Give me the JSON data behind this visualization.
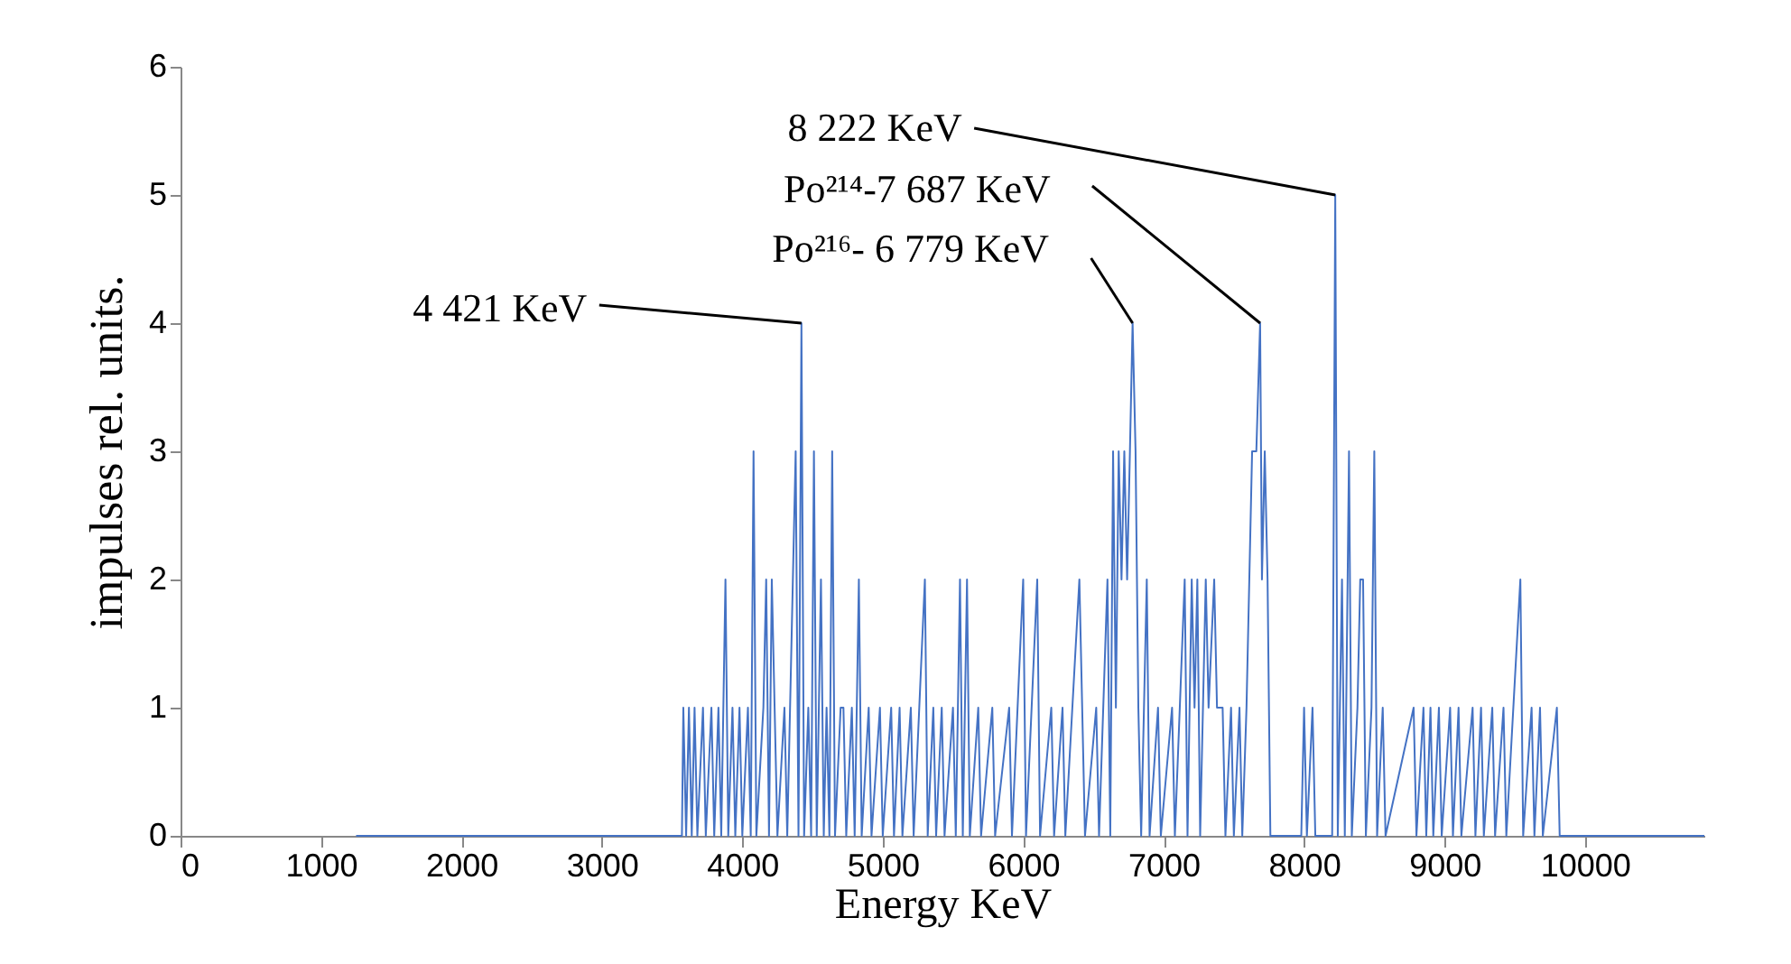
{
  "chart_data": {
    "type": "line",
    "xlabel": "Energy KeV",
    "ylabel": "impulses rel. units.",
    "xlim": [
      0,
      10850
    ],
    "xticks": [
      0,
      1000,
      2000,
      3000,
      4000,
      5000,
      6000,
      7000,
      8000,
      9000,
      10000
    ],
    "ylim": [
      0,
      6
    ],
    "yticks": [
      0,
      1,
      2,
      3,
      4,
      5,
      6
    ],
    "grid": false,
    "marker": "none",
    "line_style": "solid",
    "annotations": [
      {
        "text": "4 421 KeV",
        "x": 4421,
        "y": 4
      },
      {
        "text": "Po²¹⁶- 6 779 KeV",
        "x": 6779,
        "y": 4
      },
      {
        "text": "Po²¹⁴-7 687 KeV",
        "x": 7687,
        "y": 4
      },
      {
        "text": "8 222 KeV",
        "x": 8222,
        "y": 5
      }
    ],
    "series": [
      {
        "color": "#4472c4",
        "x": [
          1250,
          3570,
          3580,
          3600,
          3620,
          3640,
          3660,
          3680,
          3720,
          3740,
          3780,
          3800,
          3830,
          3850,
          3880,
          3900,
          3930,
          3950,
          3980,
          4000,
          4040,
          4060,
          4080,
          4100,
          4150,
          4170,
          4190,
          4210,
          4230,
          4250,
          4300,
          4320,
          4380,
          4400,
          4421,
          4440,
          4470,
          4490,
          4510,
          4530,
          4560,
          4580,
          4600,
          4620,
          4640,
          4660,
          4700,
          4720,
          4740,
          4780,
          4800,
          4830,
          4850,
          4900,
          4920,
          4980,
          5000,
          5060,
          5080,
          5120,
          5140,
          5200,
          5220,
          5300,
          5320,
          5360,
          5380,
          5420,
          5440,
          5500,
          5520,
          5550,
          5570,
          5600,
          5620,
          5680,
          5700,
          5780,
          5800,
          5900,
          5920,
          6000,
          6020,
          6100,
          6120,
          6200,
          6220,
          6280,
          6300,
          6400,
          6420,
          6440,
          6520,
          6540,
          6600,
          6620,
          6640,
          6660,
          6680,
          6700,
          6720,
          6740,
          6760,
          6779,
          6800,
          6820,
          6840,
          6880,
          6900,
          6960,
          6980,
          7060,
          7080,
          7150,
          7170,
          7200,
          7220,
          7240,
          7260,
          7300,
          7320,
          7360,
          7380,
          7420,
          7440,
          7480,
          7500,
          7540,
          7560,
          7590,
          7610,
          7630,
          7660,
          7687,
          7700,
          7720,
          7740,
          7760,
          7980,
          8000,
          8020,
          8060,
          8080,
          8200,
          8222,
          8240,
          8270,
          8290,
          8320,
          8340,
          8380,
          8400,
          8420,
          8440,
          8480,
          8500,
          8520,
          8560,
          8580,
          8780,
          8800,
          8850,
          8870,
          8900,
          8920,
          8960,
          8980,
          9040,
          9060,
          9100,
          9120,
          9200,
          9220,
          9260,
          9280,
          9340,
          9360,
          9420,
          9440,
          9540,
          9560,
          9620,
          9640,
          9680,
          9700,
          9800,
          9820,
          10850
        ],
        "values": [
          0,
          0,
          1,
          0,
          1,
          0,
          1,
          0,
          1,
          0,
          1,
          0,
          1,
          0,
          2,
          0,
          1,
          0,
          1,
          0,
          1,
          0,
          3,
          0,
          1,
          2,
          0,
          2,
          1,
          0,
          1,
          0,
          3,
          0,
          4,
          0,
          1,
          0,
          3,
          0,
          2,
          0,
          1,
          0,
          3,
          0,
          1,
          1,
          0,
          1,
          0,
          2,
          0,
          1,
          0,
          1,
          0,
          1,
          0,
          1,
          0,
          1,
          0,
          2,
          0,
          1,
          0,
          1,
          0,
          1,
          0,
          2,
          0,
          2,
          0,
          1,
          0,
          1,
          0,
          1,
          0,
          2,
          0,
          2,
          0,
          1,
          0,
          1,
          0,
          2,
          1,
          0,
          1,
          0,
          2,
          0,
          3,
          1,
          3,
          2,
          3,
          2,
          3,
          4,
          3,
          1,
          0,
          2,
          0,
          1,
          0,
          1,
          0,
          2,
          0,
          2,
          1,
          2,
          0,
          2,
          1,
          2,
          1,
          1,
          0,
          1,
          0,
          1,
          0,
          1,
          2,
          3,
          3,
          4,
          2,
          3,
          2,
          0,
          0,
          1,
          0,
          1,
          0,
          0,
          5,
          0,
          2,
          0,
          3,
          0,
          1,
          2,
          2,
          0,
          1,
          3,
          0,
          1,
          0,
          1,
          0,
          1,
          0,
          1,
          0,
          1,
          0,
          1,
          0,
          1,
          0,
          1,
          0,
          1,
          0,
          1,
          0,
          1,
          0,
          2,
          0,
          1,
          0,
          1,
          0,
          1,
          0,
          0
        ]
      }
    ]
  }
}
